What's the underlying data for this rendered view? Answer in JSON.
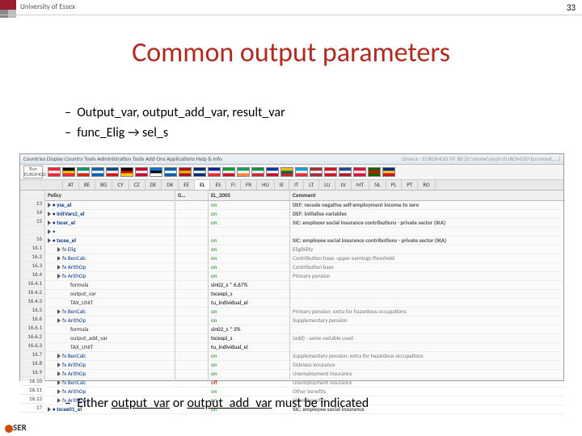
{
  "page_number": "33",
  "university": "University of Essex",
  "title": "Common output parameters",
  "bullets": [
    "Output_var, output_add_var, result_var",
    "func_Elig → sel_s"
  ],
  "bottom_bullet_parts": [
    "Either ",
    "output_var",
    " or ",
    "output_add_var",
    " must be indicated"
  ],
  "toolbar_text": "Countries   Display   Country Tools   Administration Tools   Add-Ons   Applications   Help & Info",
  "toolbar_right": "Greece - EUROMOD (© IB) [D:\\Home\\jvjvjv\\EUROMOD\\Euromod_…]",
  "run_label": "Run EUROMOD",
  "flag_colors": [
    [
      "#ed2939",
      "#fff",
      "#ed2939"
    ],
    [
      "#000",
      "#ffce00",
      "#ed2939"
    ],
    [
      "#00966e",
      "#fff",
      "#d62612"
    ],
    [
      "#0d5eaf",
      "#fff",
      "#0d5eaf"
    ],
    [
      "#11457e",
      "#fff",
      "#d7141a"
    ],
    [
      "#000",
      "#dd0000",
      "#ffce00"
    ],
    [
      "#c60c30",
      "#fff",
      "#c60c30"
    ],
    [
      "#0072ce",
      "#000",
      "#fff"
    ],
    [
      "#0d5eaf",
      "#fff",
      "#0d5eaf"
    ],
    [
      "#aa151b",
      "#f1bf00",
      "#aa151b"
    ],
    [
      "#002f6c",
      "#fff",
      "#002f6c"
    ],
    [
      "#002395",
      "#fff",
      "#ed2939"
    ],
    [
      "#009b3a",
      "#fff",
      "#ce1126"
    ],
    [
      "#169b62",
      "#fff",
      "#ff883e"
    ],
    [
      "#009246",
      "#fff",
      "#ce2b37"
    ],
    [
      "#0033a0",
      "#fff",
      "#c8102e"
    ],
    [
      "#fdb913",
      "#006a44",
      "#c1272d"
    ],
    [
      "#00a1de",
      "#fff",
      "#ed2939"
    ],
    [
      "#9e3039",
      "#fff",
      "#9e3039"
    ],
    [
      "#ce1126",
      "#fff",
      "#ce1126"
    ],
    [
      "#21468b",
      "#fff",
      "#ae1c28"
    ],
    [
      "#dc143c",
      "#fff",
      "#dc143c"
    ],
    [
      "#006600",
      "#ff0000",
      "#006600"
    ],
    [
      "#002b7f",
      "#fcd116",
      "#ce1126"
    ]
  ],
  "tabs": [
    "",
    "AT",
    "BE",
    "BG",
    "CY",
    "CZ",
    "DE",
    "DK",
    "EE",
    "EL",
    "ES",
    "FI",
    "FR",
    "HU",
    "IE",
    "IT",
    "LT",
    "LU",
    "LV",
    "MT",
    "NL",
    "PL",
    "PT",
    "RO"
  ],
  "grid_headers": {
    "policy": "Policy",
    "g": "G…",
    "el": "EL_2005",
    "comment": "Comment"
  },
  "rows": [
    {
      "n": "13",
      "pol": "yse_el",
      "ind": 0,
      "bold": 1,
      "el": "on",
      "com": "DEF: recode negative self-employment income to zero",
      "cb": 1
    },
    {
      "n": "14",
      "pol": "InitVars2_el",
      "ind": 0,
      "bold": 1,
      "el": "on",
      "com": "DEF: initialise variables",
      "cb": 1
    },
    {
      "n": "15",
      "pol": "tscer_el",
      "ind": 0,
      "bold": 1,
      "el": "on",
      "com": "SIC: employer social insurance contributions - private sector (IKA)",
      "cb": 1
    },
    {
      "n": "",
      "pol": "",
      "ind": 0,
      "el": "",
      "com": "",
      "cb": 0
    },
    {
      "n": "16",
      "pol": "tscee_el",
      "ind": 0,
      "bold": 1,
      "el": "on",
      "com": "SIC: employee social insurance contributions - private sector (IKA)",
      "cb": 1
    },
    {
      "n": "16.1",
      "pol": "fx Elig",
      "ind": 1,
      "el": "on",
      "com": "Eligibility",
      "cb": 0
    },
    {
      "n": "16.2",
      "pol": "fx BenCalc",
      "ind": 1,
      "el": "on",
      "com": "Contribution base: upper earnings threshold",
      "cb": 0
    },
    {
      "n": "16.3",
      "pol": "fx ArithOp",
      "ind": 1,
      "el": "on",
      "com": "Contribution base",
      "cb": 0
    },
    {
      "n": "16.4",
      "pol": "fx ArithOp",
      "ind": 1,
      "el": "on",
      "com": "Primary pension",
      "cb": 0
    },
    {
      "n": "16.4.1",
      "pol": "formula",
      "ind": 2,
      "el": "sin02_s * 6.67%",
      "com": "",
      "cb": 0
    },
    {
      "n": "16.4.2",
      "pol": "output_var",
      "ind": 2,
      "el": "tsceepi_s",
      "com": "",
      "cb": 0
    },
    {
      "n": "16.4.3",
      "pol": "TAX_UNIT",
      "ind": 2,
      "el": "tu_individual_el",
      "com": "",
      "cb": 0
    },
    {
      "n": "16.5",
      "pol": "fx BenCalc",
      "ind": 1,
      "el": "on",
      "com": "Primary pension: extra for hazardous occupations",
      "cb": 0
    },
    {
      "n": "16.6",
      "pol": "fx ArithOp",
      "ind": 1,
      "el": "on",
      "com": "Supplementary pension",
      "cb": 0
    },
    {
      "n": "16.6.1",
      "pol": "formula",
      "ind": 2,
      "el": "sin02_s * 3%",
      "com": "",
      "cb": 0
    },
    {
      "n": "16.6.2",
      "pol": "output_add_var",
      "ind": 2,
      "el": "tsceepi_s",
      "com": "(add) - same variable used",
      "cb": 0
    },
    {
      "n": "16.6.3",
      "pol": "TAX_UNIT",
      "ind": 2,
      "el": "tu_individual_el",
      "com": "",
      "cb": 0
    },
    {
      "n": "16.7",
      "pol": "fx BenCalc",
      "ind": 1,
      "el": "on",
      "com": "Supplementary pension: extra for hazardous occupations",
      "cb": 0
    },
    {
      "n": "16.8",
      "pol": "fx ArithOp",
      "ind": 1,
      "el": "on",
      "com": "Sickness insurance",
      "cb": 0
    },
    {
      "n": "16.9",
      "pol": "fx ArithOp",
      "ind": 1,
      "el": "on",
      "com": "Unemployment insurance",
      "cb": 0
    },
    {
      "n": "16.10",
      "pol": "fx BenCalc",
      "ind": 1,
      "el": "off",
      "com": "Unemployment insurance",
      "cb": 0
    },
    {
      "n": "16.11",
      "pol": "fx ArithOp",
      "ind": 1,
      "el": "on",
      "com": "Other benefits",
      "cb": 0
    },
    {
      "n": "16.12",
      "pol": "fx ArithOp",
      "ind": 1,
      "el": "on",
      "com": "Other benefits",
      "cb": 0
    },
    {
      "n": "17",
      "pol": "tscee01_el",
      "ind": 0,
      "bold": 1,
      "el": "on",
      "com": "SIC: employee social insurance",
      "cb": 1
    }
  ],
  "iser_label": "SER"
}
